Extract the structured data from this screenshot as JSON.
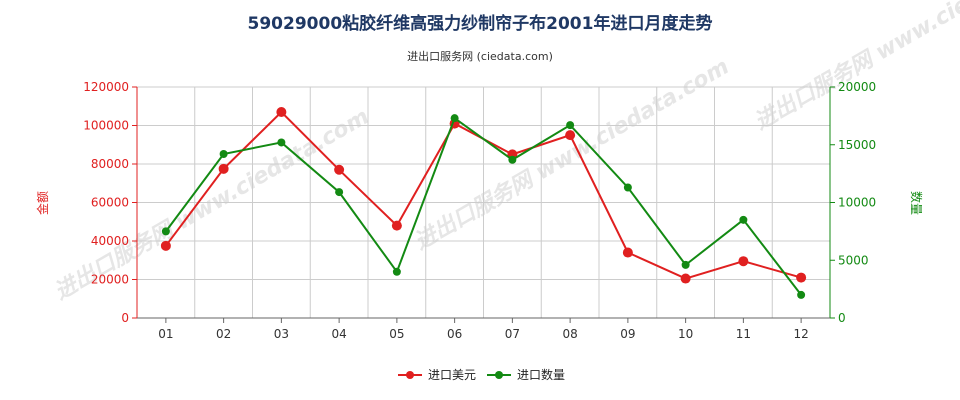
{
  "chart_data": {
    "type": "line",
    "title": "59029000粘胶纤维高强力纱制帘子布2001年进口月度走势",
    "subtitle": "进出口服务网 (ciedata.com)",
    "watermark": "进出口服务网 www.ciedata.com",
    "categories": [
      "01",
      "02",
      "03",
      "04",
      "05",
      "06",
      "07",
      "08",
      "09",
      "10",
      "11",
      "12"
    ],
    "left_axis": {
      "label": "金额",
      "ylim": [
        0,
        120000
      ],
      "ticks": [
        0,
        20000,
        40000,
        60000,
        80000,
        100000,
        120000
      ],
      "color": "#e02020"
    },
    "right_axis": {
      "label": "数量",
      "ylim": [
        0,
        20000
      ],
      "ticks": [
        0,
        5000,
        10000,
        15000,
        20000
      ],
      "color": "#138a13"
    },
    "grid": true,
    "legend_position": "bottom",
    "series": [
      {
        "name": "进口美元",
        "axis": "left",
        "color": "#e02020",
        "values": [
          37500,
          77500,
          107000,
          77000,
          48000,
          101000,
          85000,
          95000,
          34000,
          20500,
          29500,
          21000
        ]
      },
      {
        "name": "进口数量",
        "axis": "right",
        "color": "#138a13",
        "values": [
          7500,
          14200,
          15200,
          10900,
          4000,
          17300,
          13700,
          16700,
          11300,
          4600,
          8500,
          2000
        ]
      }
    ]
  }
}
